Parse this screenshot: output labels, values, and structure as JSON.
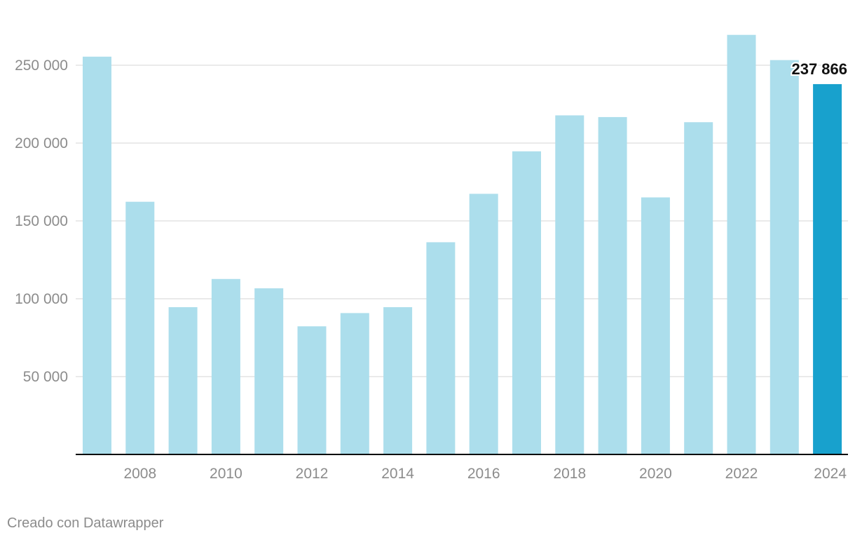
{
  "chart_data": {
    "type": "bar",
    "categories": [
      "2007",
      "2008",
      "2009",
      "2010",
      "2011",
      "2012",
      "2013",
      "2014",
      "2015",
      "2016",
      "2017",
      "2018",
      "2019",
      "2020",
      "2021",
      "2022",
      "2023",
      "2024"
    ],
    "values": [
      255500,
      162300,
      94600,
      112700,
      106700,
      82300,
      90800,
      94600,
      136300,
      167400,
      194700,
      217800,
      216700,
      165100,
      213400,
      269500,
      253300,
      237866
    ],
    "ylim": [
      0,
      270000
    ],
    "yticks": [
      50000,
      100000,
      150000,
      200000,
      250000
    ],
    "ytick_labels": [
      "50 000",
      "100 000",
      "150 000",
      "200 000",
      "250 000"
    ],
    "xtick_labels": [
      "2008",
      "2010",
      "2012",
      "2014",
      "2016",
      "2018",
      "2020",
      "2022",
      "2024"
    ],
    "highlight": {
      "category": "2024",
      "label": "237 866"
    },
    "grid": true,
    "colors": {
      "bar": "#acdeec",
      "highlight_bar": "#18a1cd",
      "grid": "#e3e3e3",
      "axis": "#000000",
      "tick_text": "#8c8c8c",
      "highlight_text": "#111111"
    }
  },
  "footer": {
    "credit": "Creado con Datawrapper"
  }
}
